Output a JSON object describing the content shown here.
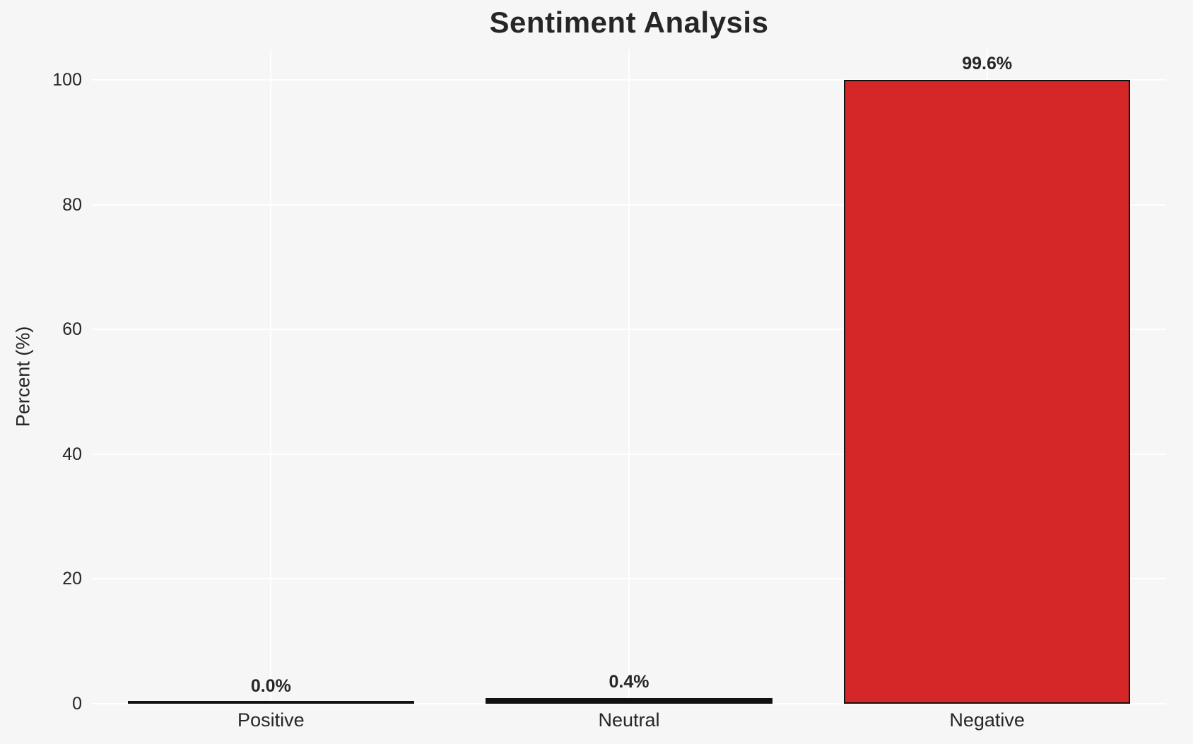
{
  "header": {
    "title": "Sentiment Analysis"
  },
  "chart_data": {
    "type": "bar",
    "title": "Sentiment Analysis",
    "xlabel": "",
    "ylabel": "Percent (%)",
    "categories": [
      "Positive",
      "Neutral",
      "Negative"
    ],
    "values": [
      0.0,
      0.4,
      99.6
    ],
    "value_labels": [
      "0.0%",
      "0.4%",
      "99.6%"
    ],
    "bar_fill_colors": [
      "#111111",
      "#111111",
      "#d62728"
    ],
    "bar_edge_color": "#111111",
    "yticks": [
      0,
      20,
      40,
      60,
      80,
      100
    ],
    "ylim": [
      0,
      104.9
    ],
    "grid": true,
    "gridline_color": "#ffffff",
    "background_color": "#f6f6f7",
    "text_color": "#262626",
    "legend": false,
    "legend_position": "none",
    "bar_width_ratio": 0.8
  }
}
